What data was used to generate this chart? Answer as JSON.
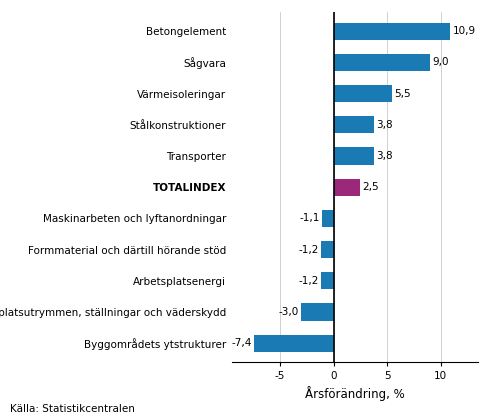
{
  "categories": [
    "Byggområdets ytstrukturer",
    "Arbetsplatsutrymmen, ställningar och väderskydd",
    "Arbetsplatsenergi",
    "Formmaterial och därtill hörande stöd",
    "Maskinarbeten och lyftanordningar",
    "TOTALINDEX",
    "Transporter",
    "Stålkonstruktioner",
    "Värmeisoleringar",
    "Sågvara",
    "Betongelement"
  ],
  "values": [
    -7.4,
    -3.0,
    -1.2,
    -1.2,
    -1.1,
    2.5,
    3.8,
    3.8,
    5.5,
    9.0,
    10.9
  ],
  "bar_colors": [
    "#1a7ab4",
    "#1a7ab4",
    "#1a7ab4",
    "#1a7ab4",
    "#1a7ab4",
    "#9b2878",
    "#1a7ab4",
    "#1a7ab4",
    "#1a7ab4",
    "#1a7ab4",
    "#1a7ab4"
  ],
  "xlabel": "Årsförändring, %",
  "xlim": [
    -9.5,
    13.5
  ],
  "xticks": [
    -5,
    0,
    5,
    10
  ],
  "source": "Källa: Statistikcentralen",
  "totalindex_label": "TOTALINDEX",
  "value_label_fontsize": 7.5,
  "category_fontsize": 7.5,
  "xlabel_fontsize": 8.5,
  "source_fontsize": 7.5,
  "bar_height": 0.55
}
